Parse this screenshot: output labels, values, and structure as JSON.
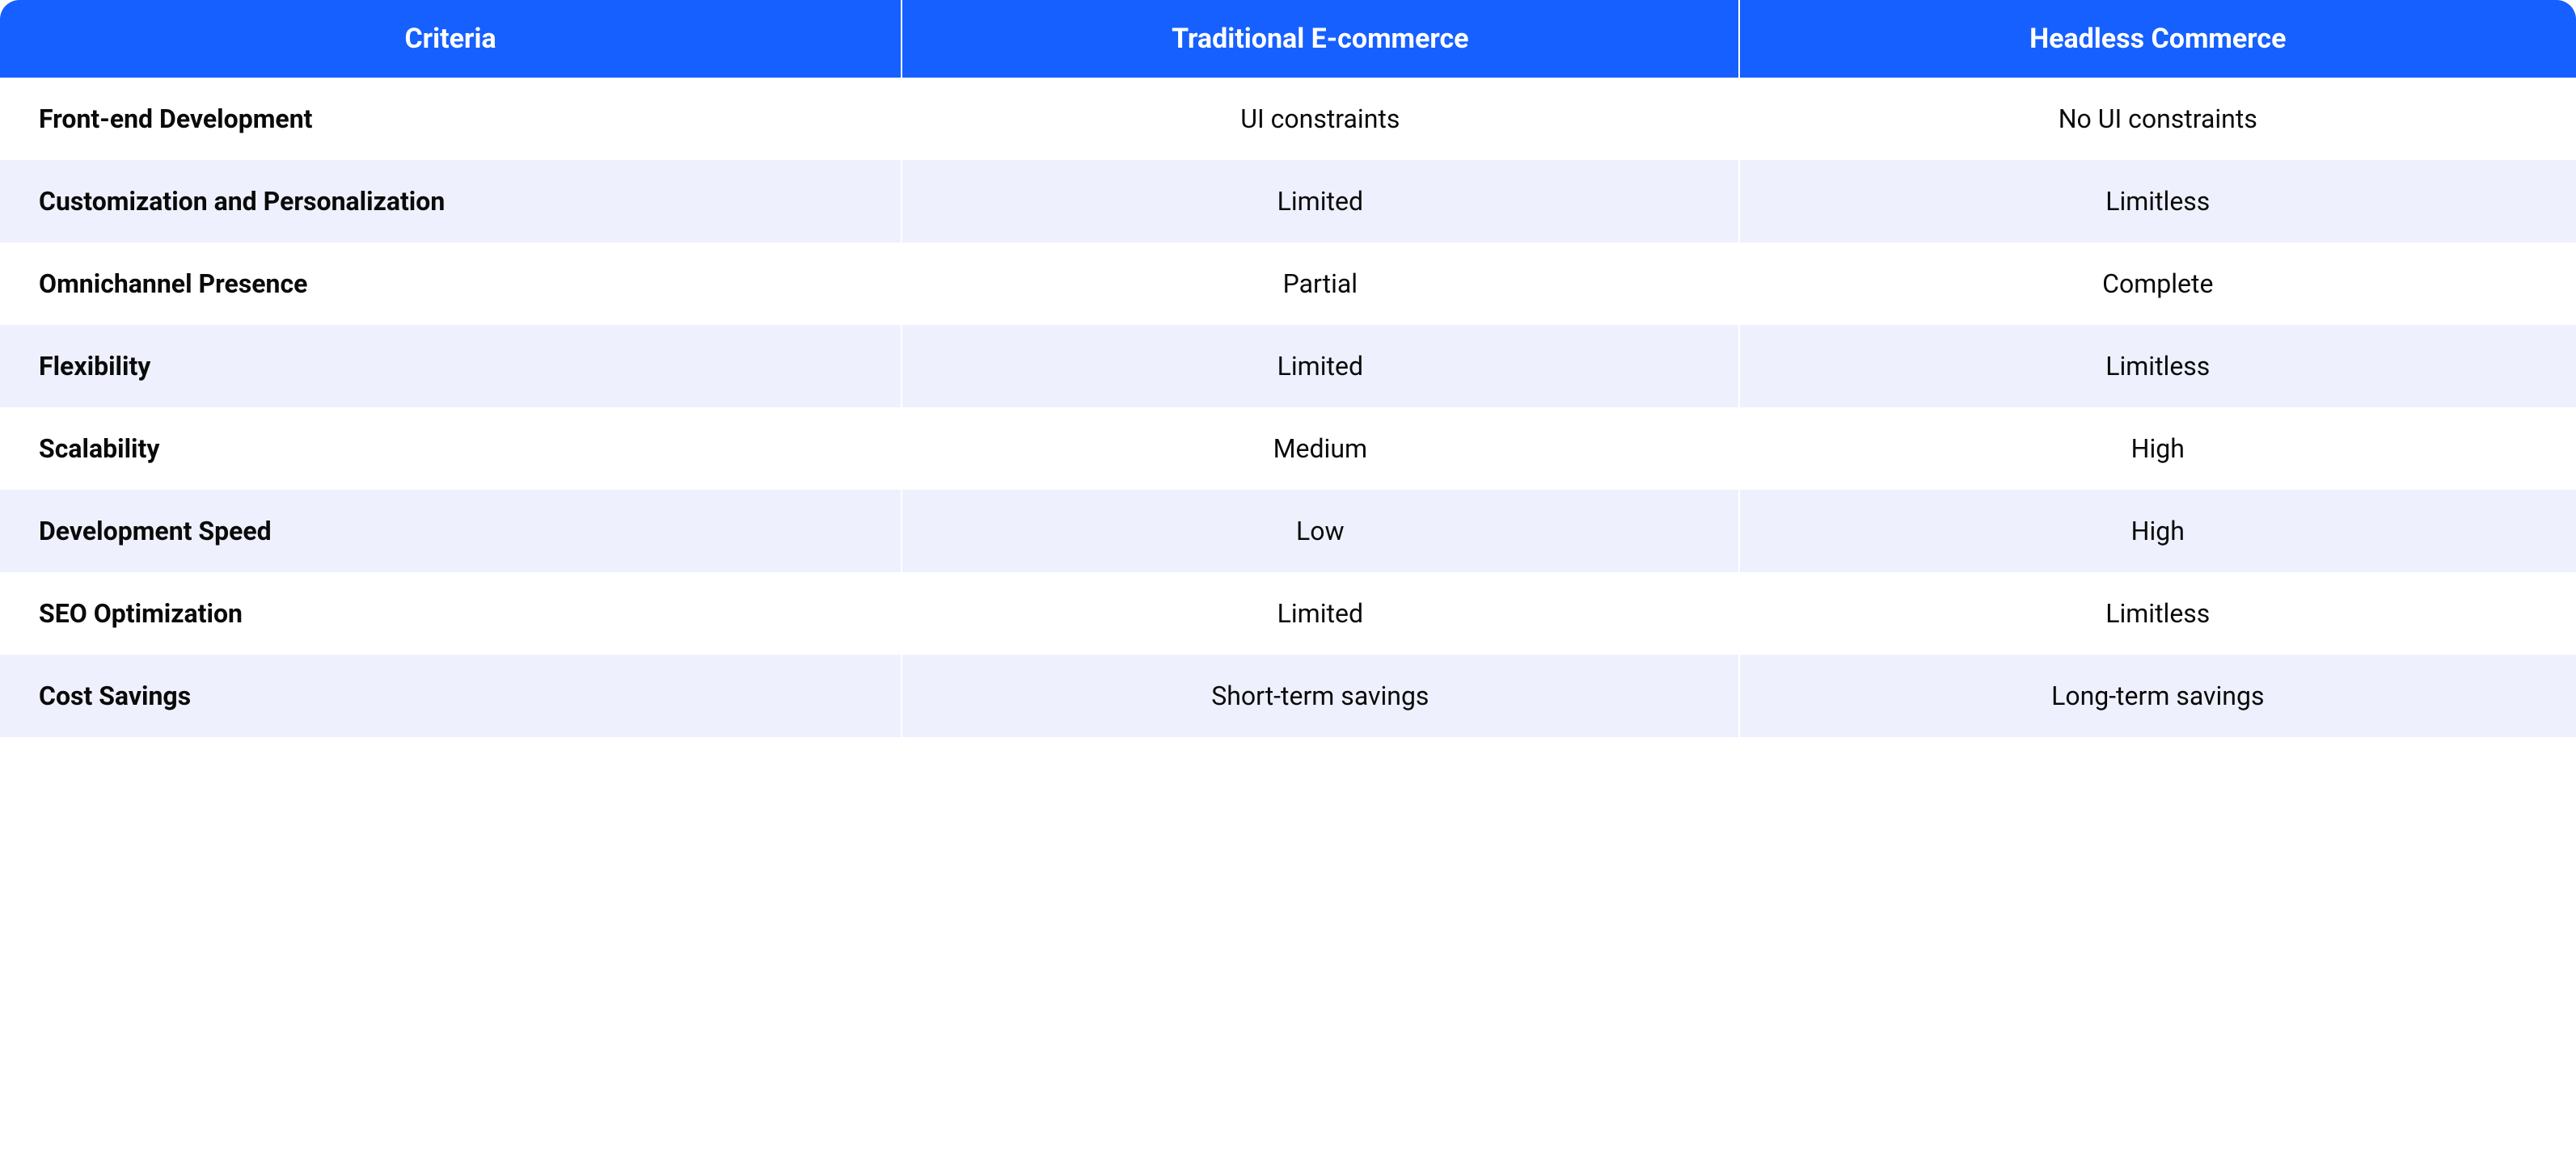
{
  "table": {
    "type": "table",
    "header_bg_color": "#1660ff",
    "header_text_color": "#ffffff",
    "row_bg_odd": "#ffffff",
    "row_bg_even": "#eef1fd",
    "cell_text_color": "#0a0a0a",
    "border_color": "#ffffff",
    "border_radius_top": 24,
    "header_fontsize": 34,
    "body_fontsize": 32,
    "header_fontweight": 700,
    "criteria_fontweight": 700,
    "value_fontweight": 400,
    "column_widths_pct": [
      35,
      32.5,
      32.5
    ],
    "columns": [
      "Criteria",
      "Traditional E-commerce",
      "Headless Commerce"
    ],
    "rows": [
      [
        "Front-end Development",
        "UI constraints",
        "No UI constraints"
      ],
      [
        "Customization and Personalization",
        "Limited",
        "Limitless"
      ],
      [
        "Omnichannel Presence",
        "Partial",
        "Complete"
      ],
      [
        "Flexibility",
        "Limited",
        "Limitless"
      ],
      [
        "Scalability",
        "Medium",
        "High"
      ],
      [
        "Development Speed",
        "Low",
        "High"
      ],
      [
        "SEO Optimization",
        "Limited",
        "Limitless"
      ],
      [
        "Cost Savings",
        "Short-term savings",
        "Long-term savings"
      ]
    ]
  }
}
